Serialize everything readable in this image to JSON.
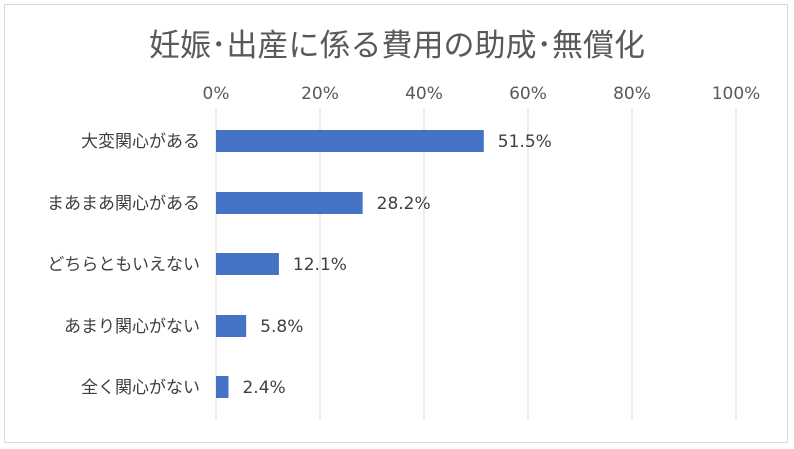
{
  "chart_data": {
    "type": "bar",
    "orientation": "horizontal",
    "title": "妊娠･出産に係る費用の助成･無償化",
    "xlabel": "",
    "ylabel": "",
    "xlim": [
      0,
      100
    ],
    "ticks": [
      "0%",
      "20%",
      "40%",
      "60%",
      "80%",
      "100%"
    ],
    "tick_values": [
      0,
      20,
      40,
      60,
      80,
      100
    ],
    "tick_position": "top",
    "grid": true,
    "legend": "none",
    "categories": [
      "大変関心がある",
      "まあまあ関心がある",
      "どちらともいえない",
      "あまり関心がない",
      "全く関心がない"
    ],
    "values": [
      51.5,
      28.2,
      12.1,
      5.8,
      2.4
    ],
    "data_labels": [
      "51.5%",
      "28.2%",
      "12.1%",
      "5.8%",
      "2.4%"
    ],
    "bar_color": "#4472c4"
  }
}
